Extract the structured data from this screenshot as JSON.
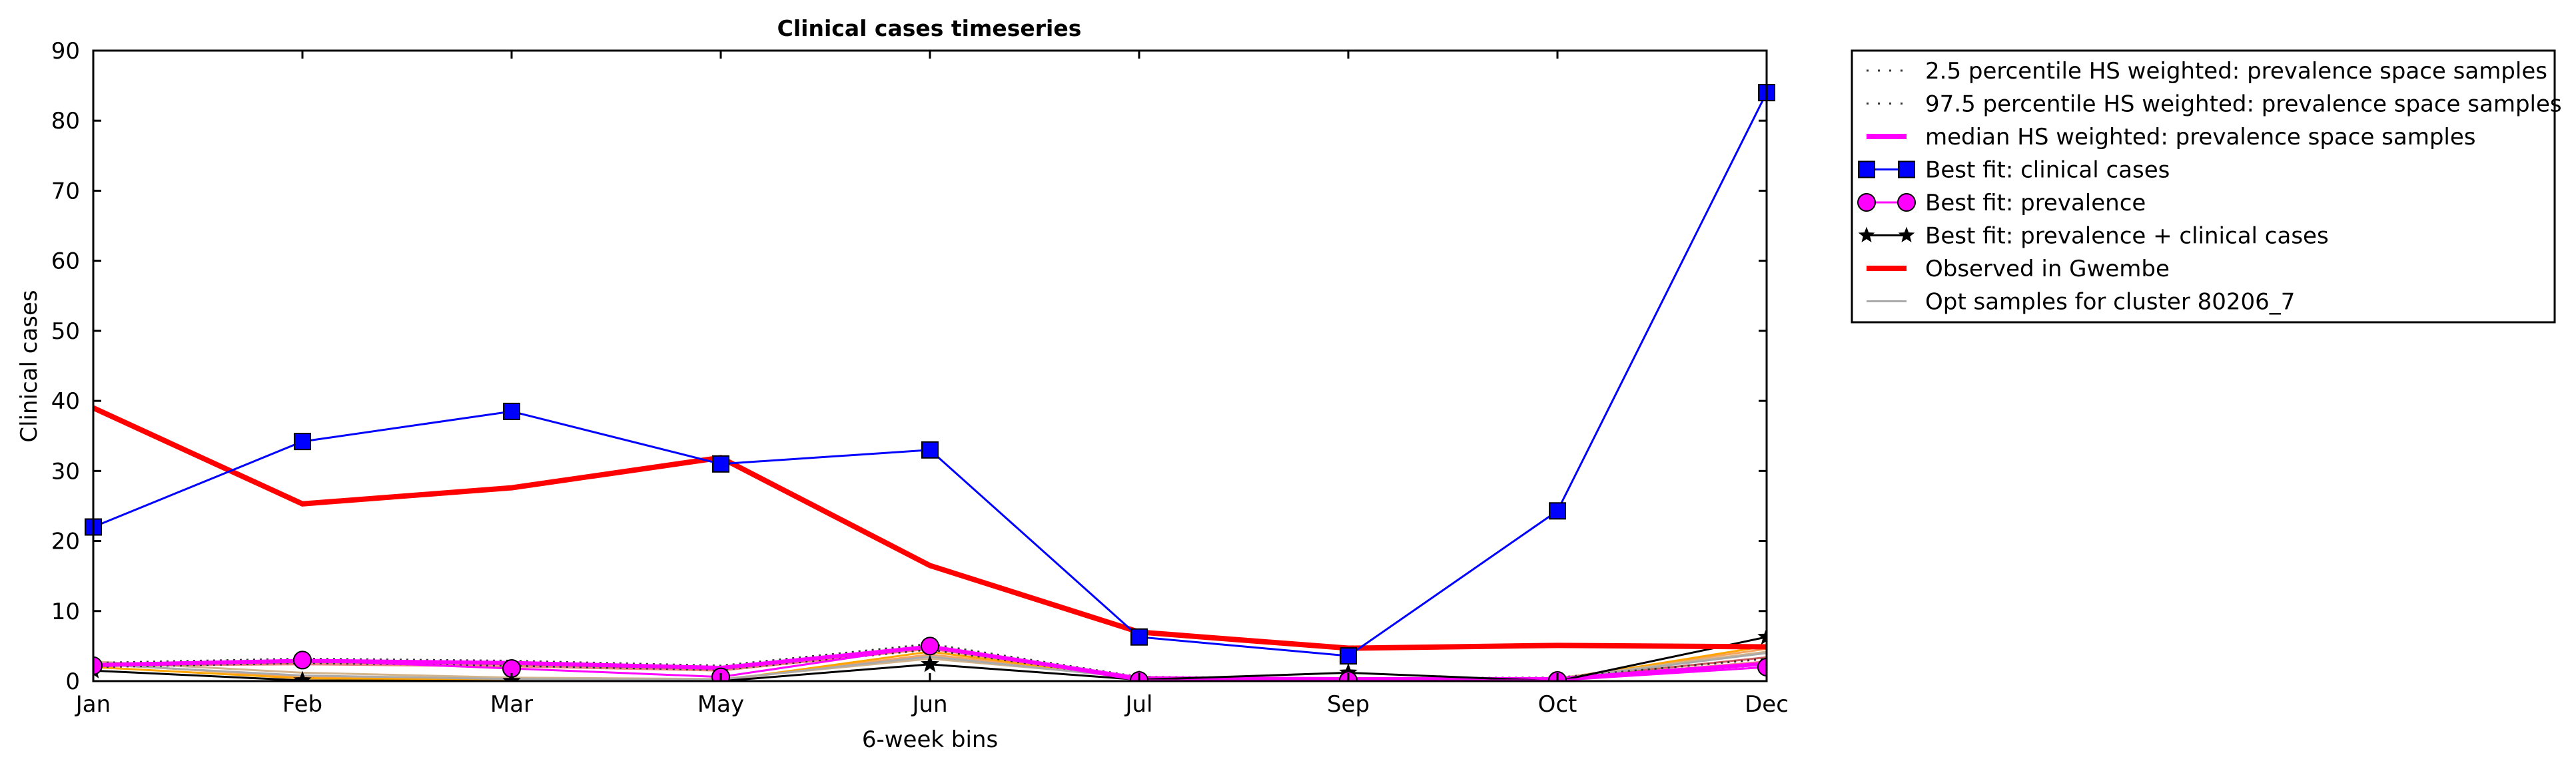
{
  "chart_data": {
    "type": "line",
    "title": "Clinical cases timeseries",
    "xlabel": "6-week bins",
    "ylabel": "Clinical cases",
    "categories": [
      "Jan",
      "Feb",
      "Mar",
      "May",
      "Jun",
      "Jul",
      "Sep",
      "Oct",
      "Dec"
    ],
    "ylim": [
      0,
      90
    ],
    "yticks": [
      0,
      10,
      20,
      30,
      40,
      50,
      60,
      70,
      80,
      90
    ],
    "grid": false,
    "legend_placement": "outside-right",
    "legend": [
      {
        "label": "2.5 percentile HS weighted: prevalence space samples",
        "style": "dotted",
        "color": "#333333"
      },
      {
        "label": "97.5 percentile HS weighted: prevalence space samples",
        "style": "dotted",
        "color": "#333333"
      },
      {
        "label": "median HS weighted: prevalence space samples",
        "style": "solid-thick",
        "color": "#ff00ff"
      },
      {
        "label": "Best fit: clinical cases",
        "style": "square-marker",
        "color": "#0000ff"
      },
      {
        "label": "Best fit: prevalence",
        "style": "circle-marker",
        "color": "#ff00ff"
      },
      {
        "label": "Best fit: prevalence + clinical cases",
        "style": "star-marker",
        "color": "#000000"
      },
      {
        "label": "Observed in Gwembe",
        "style": "solid-thick",
        "color": "#ff0000"
      },
      {
        "label": "Opt samples for cluster 80206_7",
        "style": "solid-thin",
        "color": "#aaaaaa"
      }
    ],
    "series": [
      {
        "name": "2.5 percentile HS weighted: prevalence space samples",
        "color": "#333333",
        "values": [
          2.0,
          2.6,
          2.2,
          1.6,
          4.5,
          0.3,
          0.2,
          0.2,
          2.0
        ]
      },
      {
        "name": "97.5 percentile HS weighted: prevalence space samples",
        "color": "#333333",
        "values": [
          2.6,
          3.2,
          2.9,
          2.2,
          5.3,
          0.6,
          0.4,
          0.5,
          3.2
        ]
      },
      {
        "name": "median HS weighted: prevalence space samples",
        "color": "#ff00ff",
        "values": [
          2.3,
          2.9,
          2.6,
          1.9,
          4.9,
          0.4,
          0.3,
          0.3,
          2.5
        ]
      },
      {
        "name": "Best fit: clinical cases",
        "color": "#0000ff",
        "values": [
          22,
          34.2,
          38.5,
          31,
          33,
          6.3,
          3.6,
          24.3,
          84
        ]
      },
      {
        "name": "Best fit: prevalence",
        "color": "#ff00ff",
        "values": [
          2.2,
          3.0,
          1.8,
          0.6,
          5.0,
          0.1,
          0.1,
          0.1,
          2.0
        ]
      },
      {
        "name": "Best fit: prevalence + clinical cases",
        "color": "#000000",
        "values": [
          1.5,
          0.1,
          0.0,
          0.0,
          2.4,
          0.2,
          1.2,
          0.0,
          6.3
        ]
      },
      {
        "name": "Observed in Gwembe",
        "color": "#ff0000",
        "values": [
          39,
          25.3,
          27.6,
          31.9,
          16.5,
          7.0,
          4.7,
          5.1,
          4.9
        ]
      },
      {
        "name": "Opt samples for cluster 80206_7",
        "color": "#aaaaaa",
        "values": [
          2.4,
          0.8,
          0.3,
          0.2,
          3.5,
          0.4,
          0.2,
          0.3,
          4.0
        ]
      }
    ],
    "opt_samples": [
      {
        "color": "#f4a460",
        "values": [
          2.5,
          0.6,
          0.3,
          0.1,
          3.8,
          0.5,
          0.1,
          0.4,
          4.6
        ]
      },
      {
        "color": "#ffa500",
        "values": [
          2.0,
          0.4,
          0.2,
          0.1,
          4.2,
          0.3,
          0.2,
          0.2,
          5.0
        ]
      },
      {
        "color": "#f08080",
        "values": [
          2.2,
          2.4,
          2.1,
          1.5,
          4.6,
          0.3,
          0.1,
          0.3,
          2.8
        ]
      },
      {
        "color": "#d2b48c",
        "values": [
          2.8,
          1.2,
          0.5,
          0.3,
          3.2,
          0.6,
          0.3,
          0.4,
          4.2
        ]
      },
      {
        "color": "#cd5c5c",
        "values": [
          2.1,
          2.7,
          2.4,
          1.7,
          4.8,
          0.4,
          0.2,
          0.3,
          3.4
        ]
      }
    ]
  }
}
